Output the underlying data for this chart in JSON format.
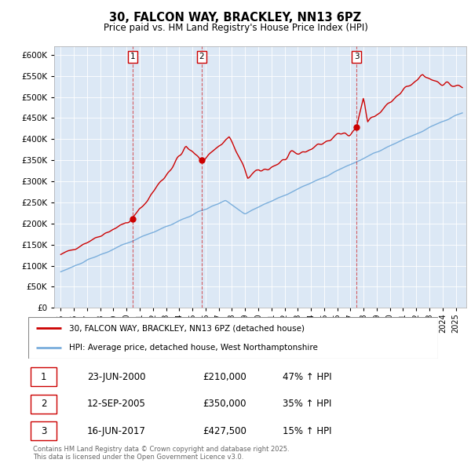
{
  "title": "30, FALCON WAY, BRACKLEY, NN13 6PZ",
  "subtitle": "Price paid vs. HM Land Registry's House Price Index (HPI)",
  "background_color": "#ffffff",
  "grid_color": "#ffffff",
  "plot_bg": "#dce8f5",
  "red_color": "#cc0000",
  "blue_color": "#7aaedc",
  "ylim": [
    0,
    620000
  ],
  "yticks": [
    0,
    50000,
    100000,
    150000,
    200000,
    250000,
    300000,
    350000,
    400000,
    450000,
    500000,
    550000,
    600000
  ],
  "sale_dates": [
    2000.47,
    2005.7,
    2017.46
  ],
  "sale_prices": [
    210000,
    350000,
    427500
  ],
  "sale_labels": [
    "1",
    "2",
    "3"
  ],
  "legend_label_red": "30, FALCON WAY, BRACKLEY, NN13 6PZ (detached house)",
  "legend_label_blue": "HPI: Average price, detached house, West Northamptonshire",
  "table_data": [
    [
      "1",
      "23-JUN-2000",
      "£210,000",
      "47% ↑ HPI"
    ],
    [
      "2",
      "12-SEP-2005",
      "£350,000",
      "35% ↑ HPI"
    ],
    [
      "3",
      "16-JUN-2017",
      "£427,500",
      "15% ↑ HPI"
    ]
  ],
  "footer": "Contains HM Land Registry data © Crown copyright and database right 2025.\nThis data is licensed under the Open Government Licence v3.0.",
  "xmin": 1994.5,
  "xmax": 2025.8
}
